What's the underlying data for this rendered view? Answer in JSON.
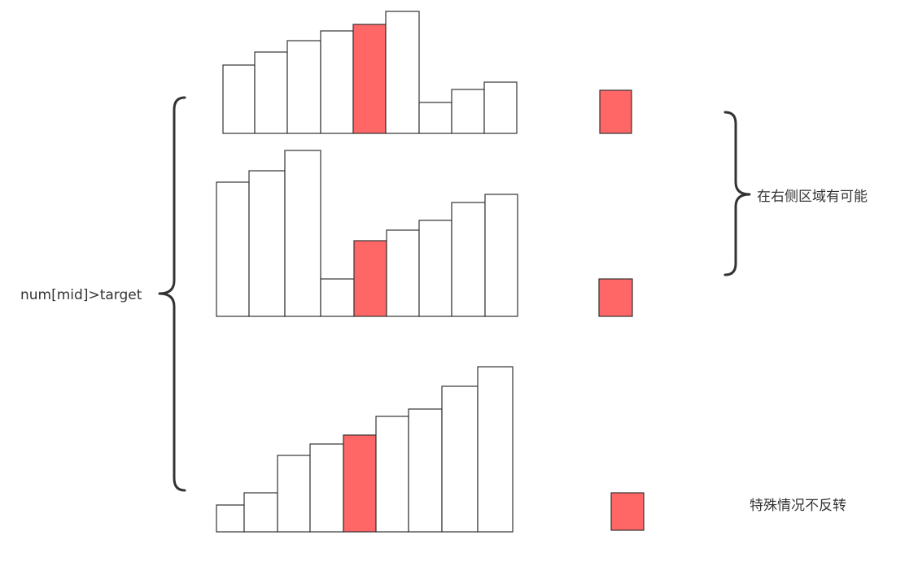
{
  "colors": {
    "highlight": "#ff6666",
    "normal": "#ffffff",
    "stroke": "#333333"
  },
  "labels": {
    "left_brace": "num[mid]>target",
    "right_brace": "在右侧区域有可能",
    "special_case": "特殊情况不反转"
  },
  "diagrams": [
    {
      "name": "rotated-array-1",
      "relative_heights": [
        84,
        100,
        114,
        126,
        134,
        150,
        38,
        54,
        63
      ],
      "highlight_index": 4
    },
    {
      "name": "rotated-array-2",
      "relative_heights": [
        165,
        179,
        204,
        46,
        93,
        106,
        118,
        140,
        150
      ],
      "highlight_index": 4
    },
    {
      "name": "sorted-array",
      "relative_heights": [
        33,
        48,
        94,
        108,
        119,
        142,
        151,
        179,
        203
      ],
      "highlight_index": 4
    }
  ]
}
